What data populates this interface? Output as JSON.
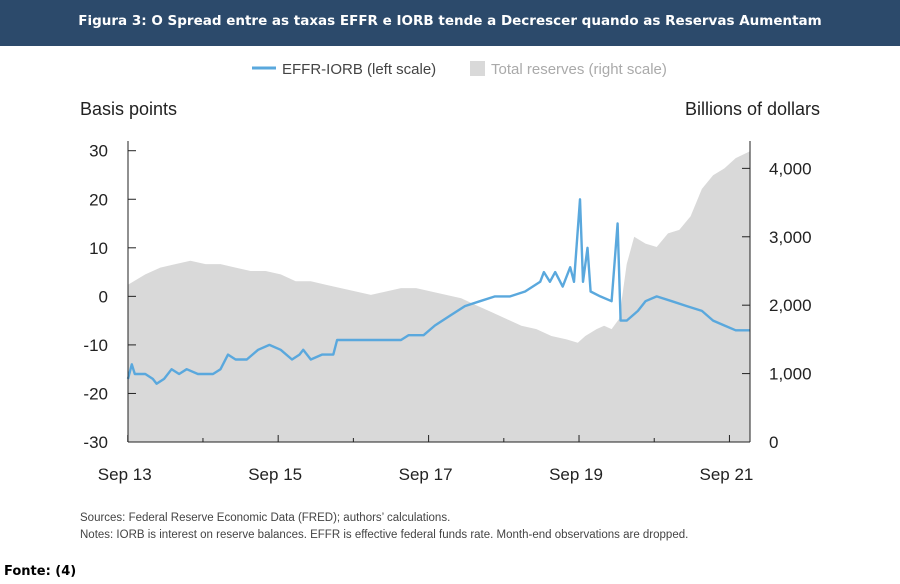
{
  "header": {
    "title": "Figura 3: O Spread entre as taxas EFFR e IORB tende a Decrescer quando as Reservas Aumentam"
  },
  "colors": {
    "header_bg": "#2c4a6b",
    "line": "#5aa8dd",
    "area": "#d9d9d9"
  },
  "chart_data": {
    "type": "line",
    "title": "",
    "legend": {
      "placement": "top-center",
      "line_label": "EFFR-IORB (left scale)",
      "area_label": "Total reserves (right scale)"
    },
    "left_axis": {
      "label": "Basis points",
      "ylim": [
        -30,
        32
      ],
      "ticks": [
        "30",
        "20",
        "10",
        "0",
        "-10",
        "-20",
        "-30"
      ]
    },
    "right_axis": {
      "label": "Billions of dollars",
      "ylim": [
        0,
        4400
      ],
      "ticks": [
        "4,000",
        "3,000",
        "2,000",
        "1,000",
        "0"
      ]
    },
    "x_axis": {
      "label": "",
      "xlim": [
        2013.67,
        2021.94
      ],
      "ticks": [
        "Sep 13",
        "Sep 15",
        "Sep 17",
        "Sep 19",
        "Sep 21"
      ]
    },
    "series": [
      {
        "name": "EFFR-IORB",
        "axis": "left",
        "style": "line",
        "points": [
          [
            2013.67,
            -17
          ],
          [
            2013.72,
            -14
          ],
          [
            2013.76,
            -16
          ],
          [
            2013.9,
            -16
          ],
          [
            2014.0,
            -17
          ],
          [
            2014.05,
            -18
          ],
          [
            2014.15,
            -17
          ],
          [
            2014.25,
            -15
          ],
          [
            2014.35,
            -16
          ],
          [
            2014.45,
            -15
          ],
          [
            2014.6,
            -16
          ],
          [
            2014.8,
            -16
          ],
          [
            2014.9,
            -15
          ],
          [
            2015.0,
            -12
          ],
          [
            2015.1,
            -13
          ],
          [
            2015.25,
            -13
          ],
          [
            2015.4,
            -11
          ],
          [
            2015.55,
            -10
          ],
          [
            2015.7,
            -11
          ],
          [
            2015.85,
            -13
          ],
          [
            2015.95,
            -12
          ],
          [
            2016.0,
            -11
          ],
          [
            2016.1,
            -13
          ],
          [
            2016.25,
            -12
          ],
          [
            2016.4,
            -12
          ],
          [
            2016.45,
            -9
          ],
          [
            2016.7,
            -9
          ],
          [
            2017.0,
            -9
          ],
          [
            2017.3,
            -9
          ],
          [
            2017.4,
            -8
          ],
          [
            2017.6,
            -8
          ],
          [
            2017.75,
            -6
          ],
          [
            2017.95,
            -4
          ],
          [
            2018.15,
            -2
          ],
          [
            2018.35,
            -1
          ],
          [
            2018.55,
            0
          ],
          [
            2018.75,
            0
          ],
          [
            2018.95,
            1
          ],
          [
            2019.15,
            3
          ],
          [
            2019.2,
            5
          ],
          [
            2019.28,
            3
          ],
          [
            2019.35,
            5
          ],
          [
            2019.45,
            2
          ],
          [
            2019.55,
            6
          ],
          [
            2019.6,
            3
          ],
          [
            2019.68,
            20
          ],
          [
            2019.72,
            3
          ],
          [
            2019.78,
            10
          ],
          [
            2019.82,
            1
          ],
          [
            2019.95,
            0
          ],
          [
            2020.1,
            -1
          ],
          [
            2020.18,
            15
          ],
          [
            2020.22,
            -5
          ],
          [
            2020.3,
            -5
          ],
          [
            2020.45,
            -3
          ],
          [
            2020.55,
            -1
          ],
          [
            2020.7,
            0
          ],
          [
            2020.9,
            -1
          ],
          [
            2021.1,
            -2
          ],
          [
            2021.3,
            -3
          ],
          [
            2021.45,
            -5
          ],
          [
            2021.6,
            -6
          ],
          [
            2021.75,
            -7
          ],
          [
            2021.94,
            -7
          ]
        ]
      },
      {
        "name": "Total reserves",
        "axis": "right",
        "style": "area",
        "points": [
          [
            2013.67,
            2300
          ],
          [
            2013.9,
            2450
          ],
          [
            2014.1,
            2550
          ],
          [
            2014.3,
            2600
          ],
          [
            2014.5,
            2650
          ],
          [
            2014.7,
            2600
          ],
          [
            2014.9,
            2600
          ],
          [
            2015.1,
            2550
          ],
          [
            2015.3,
            2500
          ],
          [
            2015.5,
            2500
          ],
          [
            2015.7,
            2450
          ],
          [
            2015.9,
            2350
          ],
          [
            2016.1,
            2350
          ],
          [
            2016.3,
            2300
          ],
          [
            2016.5,
            2250
          ],
          [
            2016.7,
            2200
          ],
          [
            2016.9,
            2150
          ],
          [
            2017.1,
            2200
          ],
          [
            2017.3,
            2250
          ],
          [
            2017.5,
            2250
          ],
          [
            2017.7,
            2200
          ],
          [
            2017.9,
            2150
          ],
          [
            2018.1,
            2100
          ],
          [
            2018.3,
            2000
          ],
          [
            2018.5,
            1900
          ],
          [
            2018.7,
            1800
          ],
          [
            2018.9,
            1700
          ],
          [
            2019.1,
            1650
          ],
          [
            2019.3,
            1550
          ],
          [
            2019.5,
            1500
          ],
          [
            2019.65,
            1450
          ],
          [
            2019.75,
            1550
          ],
          [
            2019.9,
            1650
          ],
          [
            2020.0,
            1700
          ],
          [
            2020.1,
            1650
          ],
          [
            2020.2,
            1800
          ],
          [
            2020.3,
            2600
          ],
          [
            2020.4,
            3000
          ],
          [
            2020.55,
            2900
          ],
          [
            2020.7,
            2850
          ],
          [
            2020.85,
            3050
          ],
          [
            2021.0,
            3100
          ],
          [
            2021.15,
            3300
          ],
          [
            2021.3,
            3700
          ],
          [
            2021.45,
            3900
          ],
          [
            2021.6,
            4000
          ],
          [
            2021.75,
            4150
          ],
          [
            2021.94,
            4250
          ]
        ]
      }
    ]
  },
  "notes": {
    "sources": "Sources: Federal Reserve Economic Data (FRED); authors’ calculations.",
    "notes": "Notes: IORB is interest on reserve balances. EFFR is effective federal funds rate. Month-end observations are dropped."
  },
  "source_label": "Fonte: (4)"
}
